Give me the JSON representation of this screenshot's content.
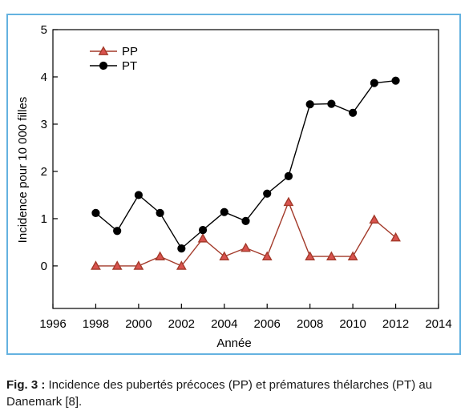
{
  "chart_data": {
    "type": "line",
    "xlabel": "Année",
    "ylabel": "Incidence pour 10 000 filles",
    "xlim": [
      1996,
      2014
    ],
    "ylim": [
      -0.9,
      5
    ],
    "xticks": [
      1996,
      1998,
      2000,
      2002,
      2004,
      2006,
      2008,
      2010,
      2012,
      2014
    ],
    "yticks": [
      0,
      1,
      2,
      3,
      4,
      5
    ],
    "grid": false,
    "legend_position": "top-left",
    "series": [
      {
        "name": "PP",
        "marker": "triangle",
        "color": "#a33a2a",
        "marker_fill": "#d9534f",
        "x": [
          1998,
          1999,
          2000,
          2001,
          2002,
          2003,
          2004,
          2005,
          2006,
          2007,
          2008,
          2009,
          2010,
          2011,
          2012
        ],
        "values": [
          0,
          0,
          0,
          0.2,
          0,
          0.58,
          0.2,
          0.38,
          0.2,
          1.35,
          0.2,
          0.2,
          0.2,
          0.98,
          0.6
        ]
      },
      {
        "name": "PT",
        "marker": "circle",
        "color": "#000000",
        "marker_fill": "#000000",
        "x": [
          1998,
          1999,
          2000,
          2001,
          2002,
          2003,
          2004,
          2005,
          2006,
          2007,
          2008,
          2009,
          2010,
          2011,
          2012
        ],
        "values": [
          1.12,
          0.74,
          1.5,
          1.12,
          0.37,
          0.76,
          1.14,
          0.95,
          1.53,
          1.9,
          3.42,
          3.43,
          3.24,
          3.87,
          3.92
        ]
      }
    ]
  },
  "caption": {
    "label": "Fig. 3 :",
    "text": " Incidence des pubertés précoces (PP) et prématures thélarches (PT) au Danemark [8]."
  },
  "colors": {
    "frame_border": "#64b2e0",
    "axis": "#000000"
  }
}
